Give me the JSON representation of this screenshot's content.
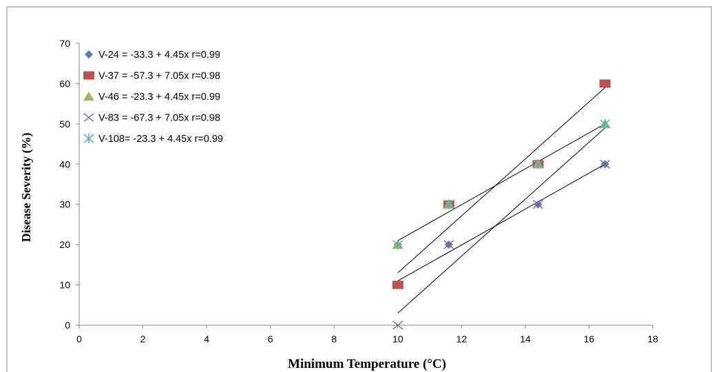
{
  "chart_data": {
    "type": "scatter",
    "xlabel": "Minimum Temperature (°C)",
    "ylabel": "Disease Severity (%)",
    "xlim": [
      0,
      18
    ],
    "ylim": [
      0,
      70
    ],
    "xticks": [
      0,
      2,
      4,
      6,
      8,
      10,
      12,
      14,
      16,
      18
    ],
    "yticks": [
      0,
      10,
      20,
      30,
      40,
      50,
      60,
      70
    ],
    "grid": false,
    "legend_position": "top-left",
    "x": [
      10,
      11.6,
      14.4,
      16.5
    ],
    "series": [
      {
        "name": "V-24  = -33.3 + 4.45x  r=0.99",
        "marker": "diamond",
        "color": "#4F81BD",
        "values": [
          20,
          20,
          30,
          40
        ]
      },
      {
        "name": "V-37  = -57.3 + 7.05x  r=0.98",
        "marker": "square",
        "color": "#C0504D",
        "values": [
          10,
          30,
          40,
          60
        ]
      },
      {
        "name": "V-46  = -23.3 + 4.45x  r=0.99",
        "marker": "triangle",
        "color": "#9BBB59",
        "values": [
          20,
          30,
          40,
          50
        ]
      },
      {
        "name": "V-83  = -67.3 + 7.05x  r=0.98",
        "marker": "x",
        "color": "#8064A2",
        "values": [
          0,
          20,
          30,
          40
        ]
      },
      {
        "name": "V-108= -23.3 + 4.45x  r=0.99",
        "marker": "star",
        "color": "#4BACC6",
        "values": [
          20,
          30,
          40,
          50
        ]
      }
    ],
    "trendlines": [
      {
        "x": [
          10,
          16.5
        ],
        "y": [
          21,
          50
        ],
        "color": "#000000"
      },
      {
        "x": [
          10,
          16.5
        ],
        "y": [
          13,
          59
        ],
        "color": "#000000"
      },
      {
        "x": [
          10,
          16.5
        ],
        "y": [
          11,
          40
        ],
        "color": "#000000"
      },
      {
        "x": [
          10,
          16.5
        ],
        "y": [
          3,
          49
        ],
        "color": "#000000"
      }
    ]
  }
}
